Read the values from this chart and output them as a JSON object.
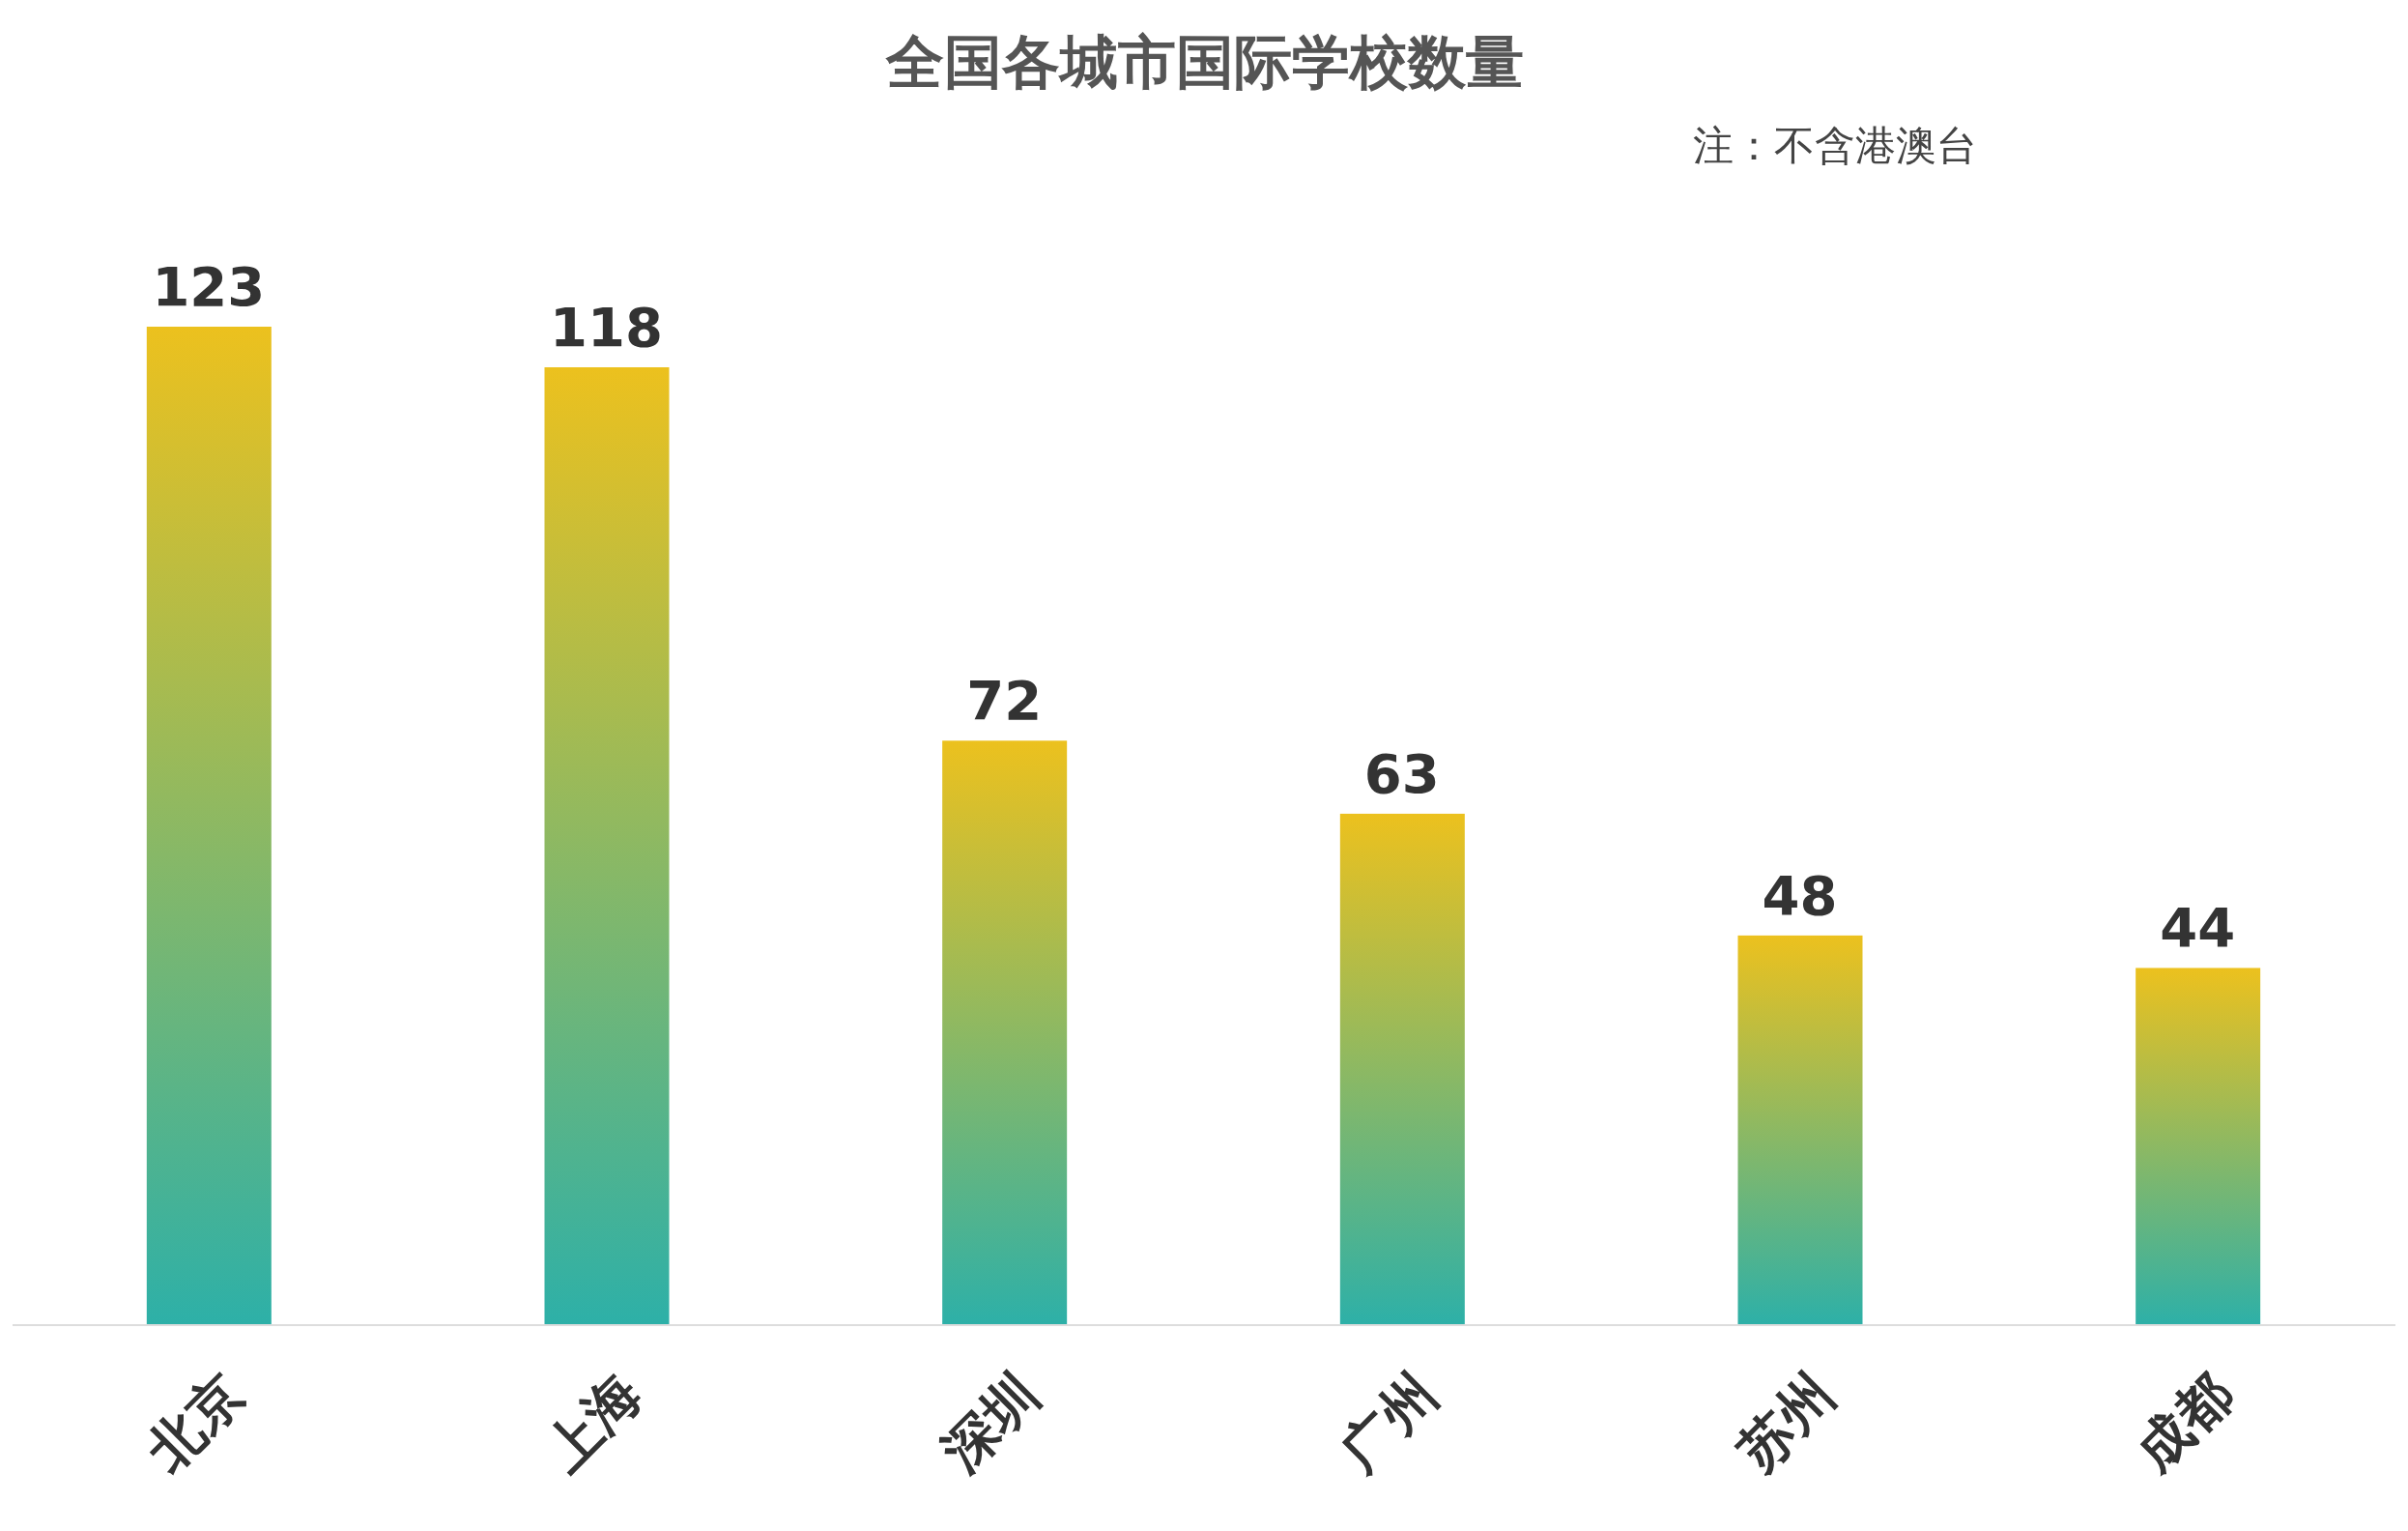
{
  "chart_data": {
    "type": "bar",
    "title": "全国各城市国际学校数量",
    "subtitle": "注：不含港澳台",
    "categories": [
      "北京",
      "上海",
      "深圳",
      "广州",
      "苏州",
      "成都"
    ],
    "values": [
      123,
      118,
      72,
      63,
      48,
      44
    ],
    "color": "#ecc11e",
    "data_labels": true
  }
}
